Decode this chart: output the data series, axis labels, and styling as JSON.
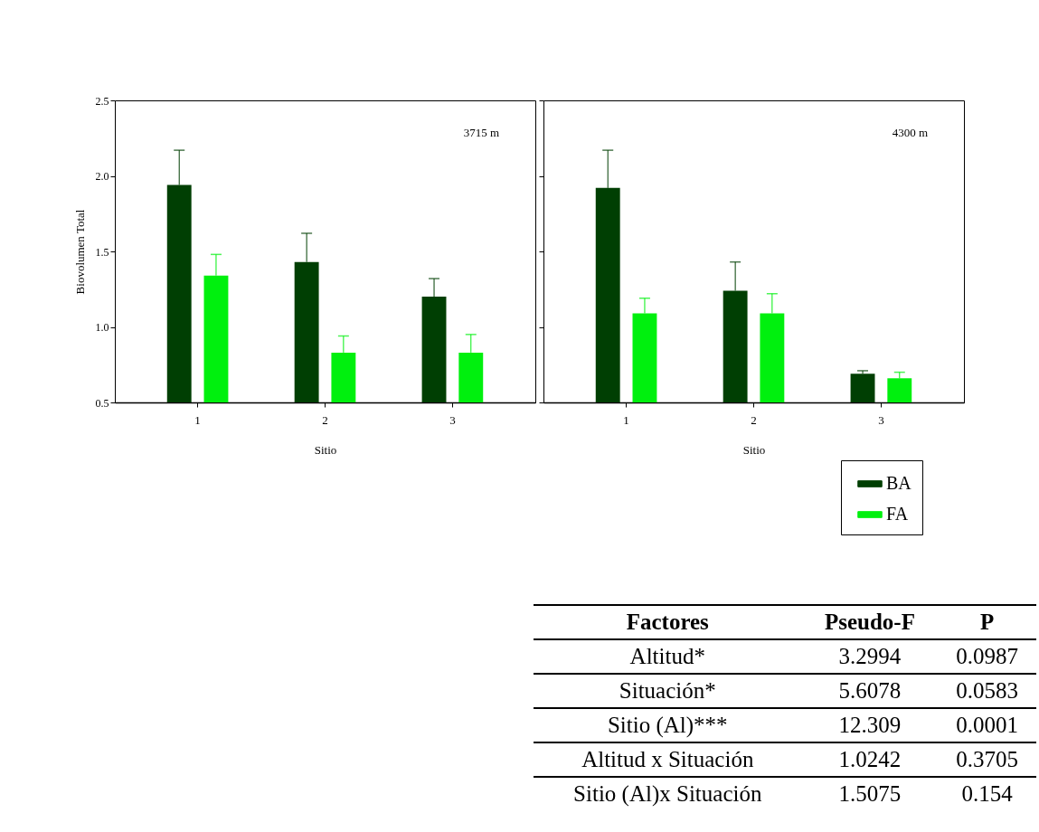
{
  "chart_data": [
    {
      "type": "bar",
      "ylabel": "Biovolumen Total",
      "xlabel": "Sitio",
      "categories": [
        "1",
        "2",
        "3"
      ],
      "ylim": [
        0.5,
        2.5
      ],
      "yticks": [
        0.5,
        {
          "value": 1,
          "label": "1.0"
        },
        1.5,
        {
          "value": 2,
          "label": "2.0"
        },
        2.5
      ],
      "annotations": [
        "3715 m"
      ],
      "legend": "bottom right",
      "series": [
        {
          "name": "BA",
          "color": "#003f03",
          "values": [
            1.94,
            1.43,
            1.2
          ],
          "errors": [
            [
              1.94,
              2.17
            ],
            [
              1.43,
              1.62
            ],
            [
              1.2,
              1.32
            ]
          ]
        },
        {
          "name": "FA",
          "color": "#00f00e",
          "values": [
            1.34,
            0.83,
            0.83
          ],
          "errors": [
            [
              1.34,
              1.48
            ],
            [
              0.83,
              0.94
            ],
            [
              0.83,
              0.95
            ]
          ]
        }
      ]
    },
    {
      "type": "bar",
      "xlabel": "Sitio",
      "categories": [
        "1",
        "2",
        "3"
      ],
      "ylim": [
        0.5,
        2.5
      ],
      "yticks": [
        0.5,
        1,
        1.5,
        2,
        2.5
      ],
      "tick_labels": "x",
      "annotations": [
        "4300 m"
      ],
      "legend": "bottom right",
      "series": [
        {
          "name": "BA",
          "color": "#003f03",
          "values": [
            1.92,
            1.24,
            0.69
          ],
          "errors": [
            [
              1.92,
              2.17
            ],
            [
              1.24,
              1.43
            ],
            [
              0.69,
              0.71
            ]
          ]
        },
        {
          "name": "FA",
          "color": "#00f00e",
          "values": [
            1.09,
            1.09,
            0.66
          ],
          "errors": [
            [
              1.09,
              1.19
            ],
            [
              1.09,
              1.22
            ],
            [
              0.66,
              0.7
            ]
          ]
        }
      ]
    },
    {
      "type": "other",
      "annotations": [
        "Factores",
        "Pseudo-F",
        "P",
        "Altitud*",
        "3.2994",
        "0.0987",
        "Situación*",
        "5.6078",
        "0.0583",
        "Sitio (Al)***",
        "12.309",
        "0.0001",
        "Altitud x Situación",
        "1.0242",
        "0.3705",
        "Sitio (Al)x Situación",
        "1.5075",
        "0.154"
      ]
    }
  ]
}
